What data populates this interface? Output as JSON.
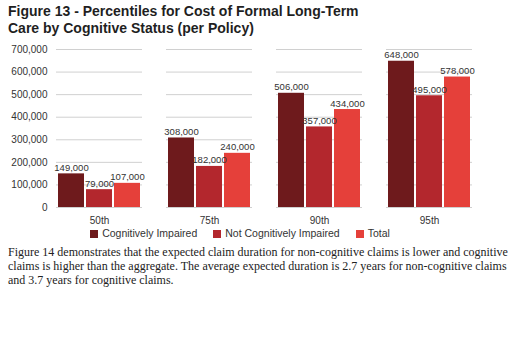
{
  "chart_data": {
    "type": "bar",
    "title": "Figure 13 - Percentiles for Cost of Formal Long-Term Care by Cognitive Status (per Policy)",
    "caption": "Figure 14 demonstrates that the expected claim duration for non-cognitive claims is lower and cognitive claims is higher than the aggregate. The average expected duration is 2.7 years for non-cognitive claims and 3.7 years for cognitive claims.",
    "categories": [
      "50th",
      "75th",
      "90th",
      "95th"
    ],
    "series": [
      {
        "name": "Cognitively Impaired",
        "color": "#6e1a1c",
        "values": [
          149000,
          308000,
          506000,
          648000
        ],
        "value_labels": [
          "149,000",
          "308,000",
          "506,000",
          "648,000"
        ]
      },
      {
        "name": "Not Cognitively Impaired",
        "color": "#b3272d",
        "values": [
          79000,
          182000,
          357000,
          495000
        ],
        "value_labels": [
          "79,000",
          "182,000",
          "357,000",
          "495,000"
        ]
      },
      {
        "name": "Total",
        "color": "#e5403a",
        "values": [
          107000,
          240000,
          434000,
          578000
        ],
        "value_labels": [
          "107,000",
          "240,000",
          "434,000",
          "578,000"
        ]
      }
    ],
    "ylim": [
      0,
      700000
    ],
    "yticks": [
      0,
      {
        "value": 100000,
        "label": "100,000"
      },
      {
        "value": 200000,
        "label": "200,000"
      },
      {
        "value": 300000,
        "label": "300,000"
      },
      {
        "value": 400000,
        "label": "400,000"
      },
      {
        "value": 500000,
        "label": "500,000"
      },
      {
        "value": 600000,
        "label": "600,000"
      },
      {
        "value": 700000,
        "label": "700,000"
      }
    ],
    "grid": true,
    "legend": "bottom",
    "data_labels": true
  }
}
